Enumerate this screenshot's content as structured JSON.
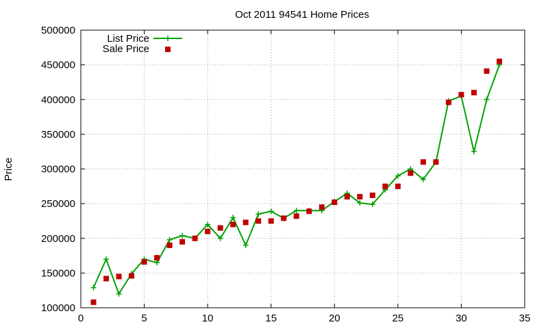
{
  "chart_data": {
    "type": "line",
    "title": "Oct 2011 94541 Home Prices",
    "xlabel": "",
    "ylabel": "Price",
    "xlim": [
      0,
      35
    ],
    "ylim": [
      100000,
      500000
    ],
    "xticks": [
      0,
      5,
      10,
      15,
      20,
      25,
      30,
      35
    ],
    "yticks": [
      100000,
      150000,
      200000,
      250000,
      300000,
      350000,
      400000,
      450000,
      500000
    ],
    "grid": true,
    "legend_position": "top-left",
    "series": [
      {
        "name": "List Price",
        "style": "line+plus-marker",
        "color": "#00a000",
        "x": [
          1,
          2,
          3,
          4,
          5,
          6,
          7,
          8,
          9,
          10,
          11,
          12,
          13,
          14,
          15,
          16,
          17,
          18,
          19,
          20,
          21,
          22,
          23,
          24,
          25,
          26,
          27,
          28,
          29,
          30,
          31,
          32,
          33
        ],
        "y": [
          129000,
          170000,
          120000,
          149000,
          170000,
          165000,
          198000,
          204000,
          200000,
          220000,
          200000,
          230000,
          190000,
          235000,
          239000,
          229000,
          240000,
          240000,
          240000,
          253000,
          265000,
          251000,
          249000,
          270000,
          290000,
          300000,
          285000,
          310000,
          398000,
          405000,
          325000,
          400000,
          450000
        ]
      },
      {
        "name": "Sale Price",
        "style": "square-marker",
        "color": "#c00000",
        "x": [
          1,
          2,
          3,
          4,
          5,
          6,
          7,
          8,
          9,
          10,
          11,
          12,
          13,
          14,
          15,
          16,
          17,
          18,
          19,
          20,
          21,
          22,
          23,
          24,
          25,
          26,
          27,
          28,
          29,
          30,
          31,
          32,
          33
        ],
        "y": [
          108000,
          142000,
          145000,
          146000,
          166000,
          172000,
          190000,
          195000,
          200000,
          210000,
          215000,
          220000,
          223000,
          225000,
          225000,
          229000,
          232000,
          239000,
          245000,
          252000,
          260000,
          260000,
          262000,
          275000,
          275000,
          294000,
          310000,
          310000,
          396000,
          407000,
          410000,
          441000,
          455000
        ]
      }
    ]
  }
}
